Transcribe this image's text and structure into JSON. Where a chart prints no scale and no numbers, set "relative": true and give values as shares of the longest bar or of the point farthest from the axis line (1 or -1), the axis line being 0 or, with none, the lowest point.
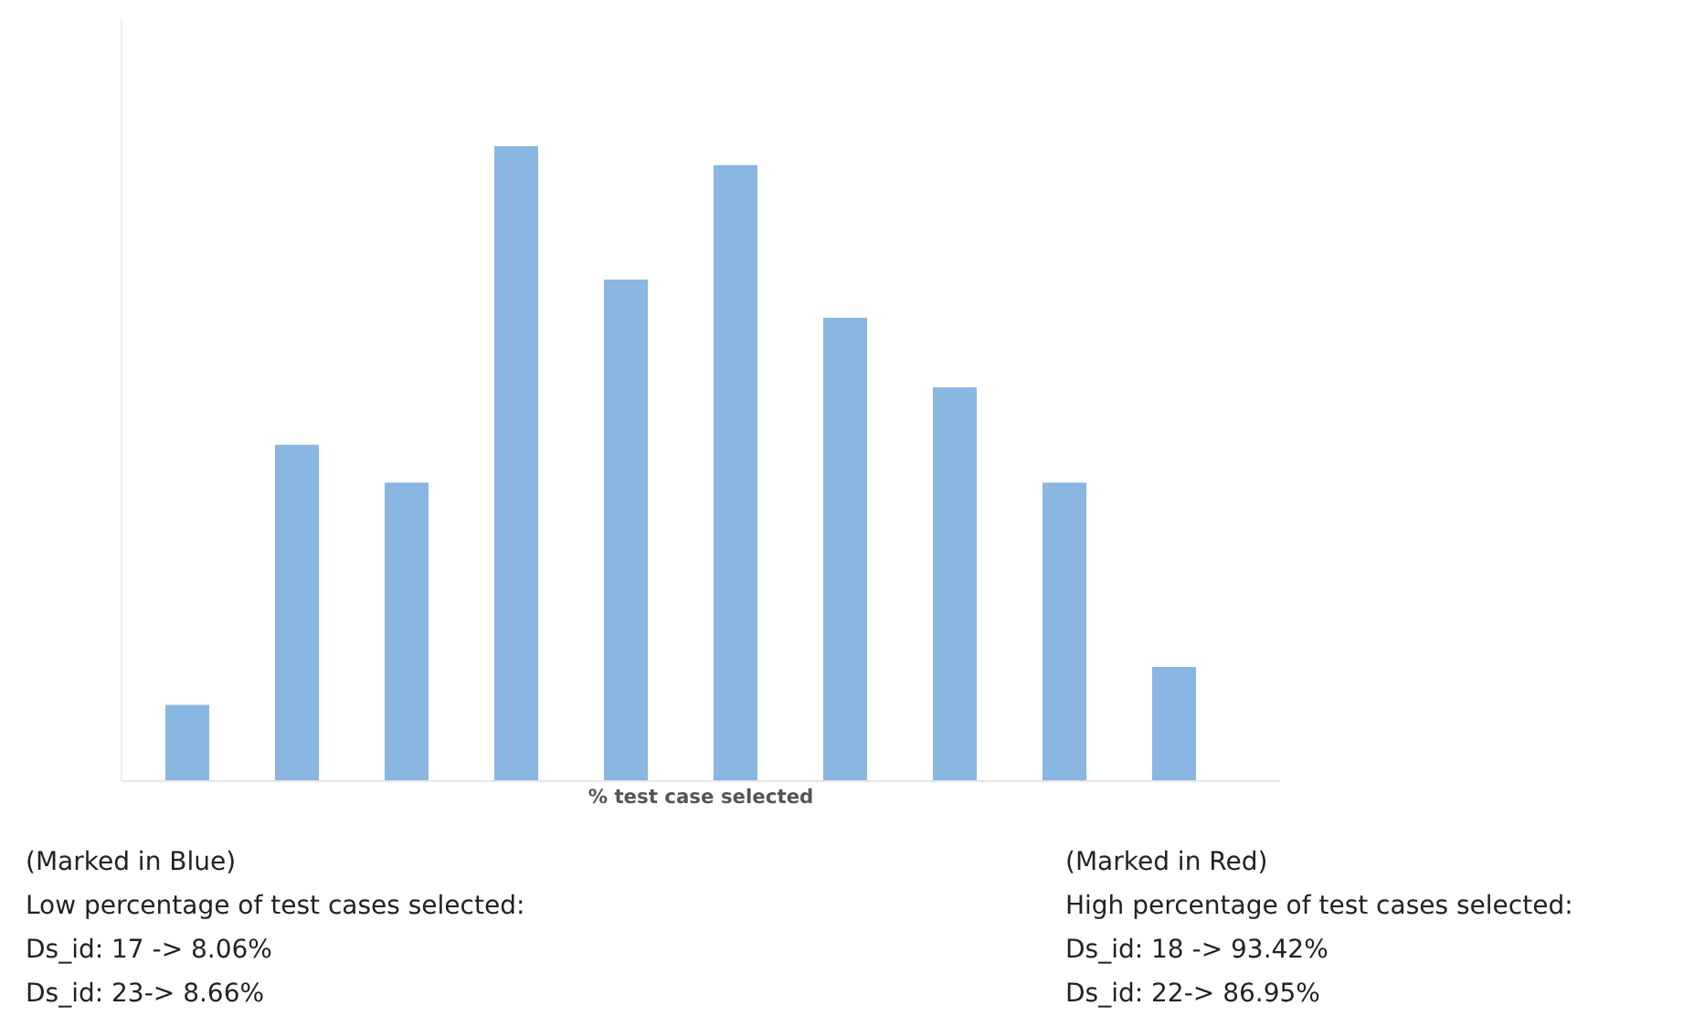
{
  "chart_data": {
    "type": "bar",
    "relative": true,
    "xlabel": "% test case selected",
    "categories": [
      null,
      null,
      null,
      null,
      null,
      null,
      null,
      null,
      null,
      null
    ],
    "values": [
      0.12,
      0.53,
      0.47,
      1,
      0.79,
      0.97,
      0.73,
      0.62,
      0.47,
      0.18
    ],
    "color": "#8ab6e2",
    "annotations": [
      "(Marked in Blue)",
      "Low percentage of test cases selected:",
      "Ds_id: 17 -> 8.06%",
      "Ds_id: 23-> 8.66%",
      "(Marked in Red)",
      "High percentage of test cases selected:",
      "Ds_id: 18 -> 93.42%",
      "Ds_id: 22-> 86.95%"
    ]
  }
}
